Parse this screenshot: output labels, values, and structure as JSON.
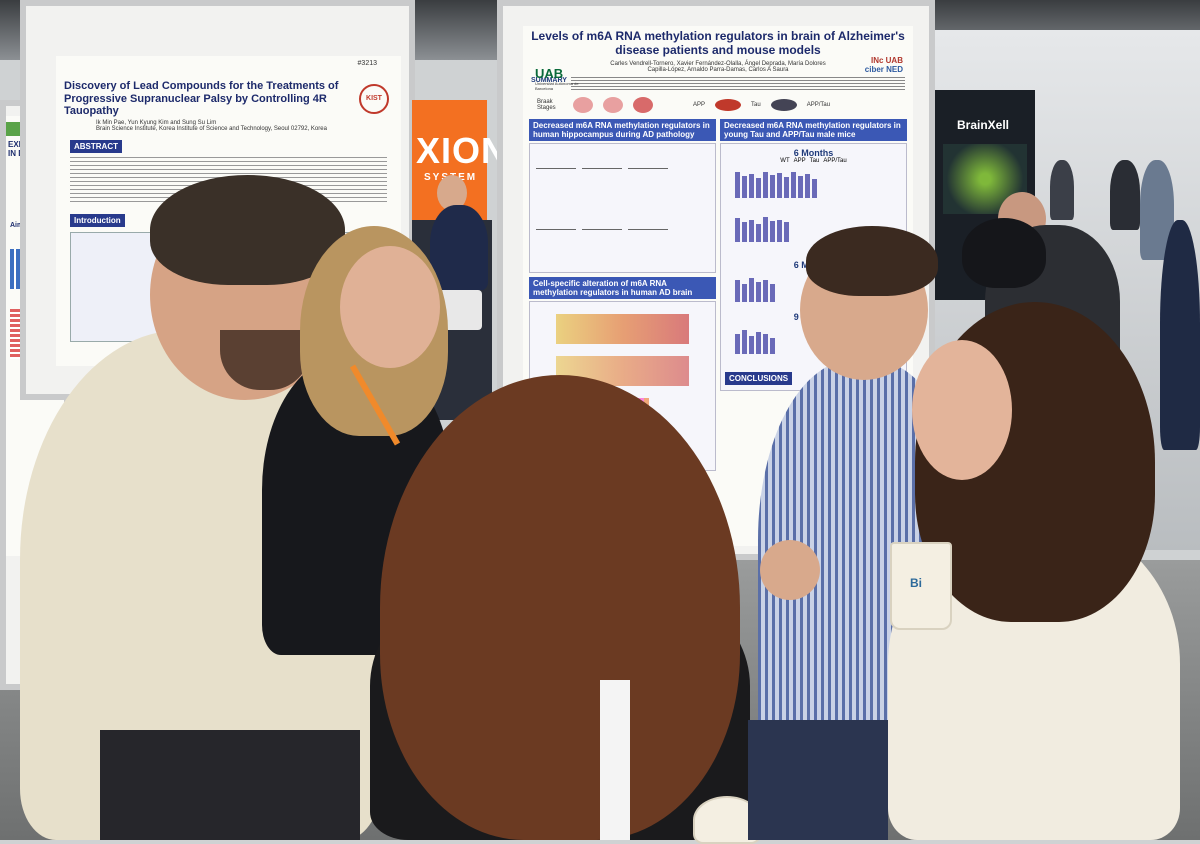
{
  "left_poster": {
    "id": "#3213",
    "title": "Discovery of Lead Compounds for the Treatments of Progressive Supranuclear Palsy by Controlling 4R Tauopathy",
    "authors": "Ik Min Pae, Yun Kyung Kim and Sung Su Lim",
    "affiliation": "Brain Science Institute, Korea Institute of Science and Technology, Seoul 02792, Korea",
    "logo_text": "KIST",
    "sections": [
      "ABSTRACT",
      "Introduction"
    ]
  },
  "far_left_poster": {
    "heading": "EXPERTS EN IN DRUG",
    "sidebar_words": [
      "Aim"
    ]
  },
  "booth_sign": {
    "text": "XION",
    "subtext": "SYSTEM"
  },
  "main_poster": {
    "title": "Levels of m6A RNA methylation regulators in brain of Alzheimer's disease patients and mouse models",
    "authors": "Carles Vendrell-Tornero, Xavier Fernández-Olalla, Ángel Deprada, María Dolores Capilla-López, Arnaldo Parra-Damas, Carlos A Saura",
    "logo_left": "UAB",
    "logo_left_sub": "Universitat Autònoma de Barcelona",
    "logo_right": "INc UAB",
    "logo_right_sub": "ciber NED",
    "summary_label": "SUMMARY",
    "braak_label": "Braak Stages",
    "mouse_labels": [
      "APP",
      "Tau",
      "APP/Tau"
    ],
    "panel_left_1": "Decreased m6A RNA methylation regulators in human hippocampus during AD pathology",
    "panel_right_1": "Decreased m6A RNA methylation regulators in young Tau and APP/Tau male mice",
    "panel_left_2": "Cell-specific alteration of m6A RNA methylation regulators in human AD brain",
    "months_6": "6 Months",
    "months_9": "9 Months",
    "legend": [
      "WT",
      "APP",
      "Tau",
      "APP/Tau"
    ],
    "conclusions": "CONCLUSIONS"
  },
  "brainxell_sign": {
    "text": "BrainXell"
  },
  "cup_label": "Bi"
}
